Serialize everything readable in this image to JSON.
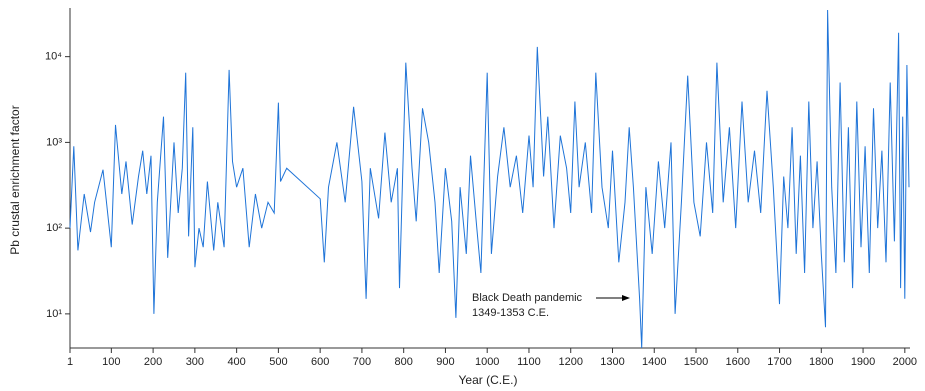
{
  "chart_data": {
    "type": "line",
    "log_y": true,
    "x_label": "Year (C.E.)",
    "y_label": "Pb crustal enrichment factor",
    "annotation": {
      "lines": [
        "Black Death pandemic",
        "1349-1353 C.E."
      ]
    },
    "xlim": [
      1,
      2010
    ],
    "ylim": [
      4,
      35000
    ],
    "xticks": [
      1,
      100,
      200,
      300,
      400,
      500,
      600,
      700,
      800,
      900,
      1000,
      1100,
      1200,
      1300,
      1400,
      1500,
      1600,
      1700,
      1800,
      1900,
      2000
    ],
    "yticks": [
      {
        "value": 10,
        "label": "10¹"
      },
      {
        "value": 100,
        "label": "10²"
      },
      {
        "value": 1000,
        "label": "10³"
      },
      {
        "value": 10000,
        "label": "10⁴"
      }
    ],
    "x": [
      1,
      10,
      20,
      35,
      50,
      60,
      80,
      100,
      110,
      125,
      135,
      150,
      165,
      175,
      185,
      195,
      202,
      210,
      225,
      235,
      250,
      260,
      270,
      278,
      285,
      295,
      300,
      310,
      320,
      330,
      345,
      355,
      370,
      382,
      390,
      400,
      415,
      430,
      445,
      460,
      475,
      490,
      500,
      505,
      520,
      600,
      610,
      620,
      640,
      660,
      680,
      700,
      710,
      720,
      740,
      755,
      770,
      785,
      790,
      805,
      820,
      830,
      845,
      860,
      875,
      885,
      900,
      915,
      925,
      935,
      950,
      960,
      975,
      985,
      1000,
      1010,
      1025,
      1040,
      1055,
      1070,
      1085,
      1100,
      1110,
      1120,
      1135,
      1145,
      1160,
      1175,
      1190,
      1200,
      1210,
      1220,
      1235,
      1250,
      1260,
      1275,
      1290,
      1300,
      1315,
      1330,
      1340,
      1350,
      1365,
      1370,
      1380,
      1395,
      1410,
      1425,
      1440,
      1450,
      1465,
      1480,
      1495,
      1510,
      1525,
      1540,
      1550,
      1565,
      1580,
      1595,
      1610,
      1625,
      1640,
      1655,
      1670,
      1685,
      1700,
      1710,
      1720,
      1730,
      1740,
      1750,
      1760,
      1770,
      1780,
      1790,
      1800,
      1810,
      1815,
      1825,
      1835,
      1845,
      1855,
      1865,
      1875,
      1885,
      1895,
      1905,
      1915,
      1925,
      1935,
      1945,
      1955,
      1965,
      1975,
      1985,
      1990,
      1995,
      2000,
      2005,
      2010
    ],
    "series": [
      {
        "color": "#1f74d8",
        "values": [
          100,
          900,
          55,
          250,
          90,
          200,
          480,
          60,
          1600,
          250,
          600,
          110,
          400,
          800,
          250,
          700,
          10,
          200,
          2000,
          45,
          1000,
          150,
          500,
          6500,
          80,
          1500,
          35,
          100,
          60,
          350,
          55,
          200,
          60,
          7000,
          600,
          300,
          500,
          60,
          250,
          100,
          200,
          150,
          2900,
          350,
          500,
          220,
          40,
          300,
          1000,
          200,
          2600,
          350,
          15,
          500,
          130,
          1300,
          200,
          500,
          20,
          8500,
          500,
          120,
          2500,
          1000,
          200,
          30,
          500,
          120,
          9,
          300,
          50,
          700,
          100,
          30,
          6500,
          50,
          400,
          1500,
          300,
          700,
          150,
          1200,
          300,
          13000,
          400,
          2000,
          100,
          1200,
          500,
          150,
          3000,
          300,
          1000,
          150,
          6500,
          300,
          100,
          800,
          40,
          200,
          1500,
          300,
          15,
          4,
          300,
          50,
          600,
          100,
          1000,
          10,
          200,
          6000,
          200,
          80,
          1000,
          150,
          8500,
          200,
          1500,
          100,
          3000,
          200,
          800,
          150,
          4000,
          300,
          13,
          400,
          100,
          1500,
          50,
          700,
          30,
          3000,
          100,
          600,
          50,
          7,
          35000,
          300,
          30,
          5000,
          40,
          1500,
          20,
          3000,
          60,
          900,
          30,
          2500,
          100,
          800,
          40,
          5000,
          70,
          19000,
          20,
          2000,
          15,
          8000,
          300
        ]
      }
    ]
  }
}
